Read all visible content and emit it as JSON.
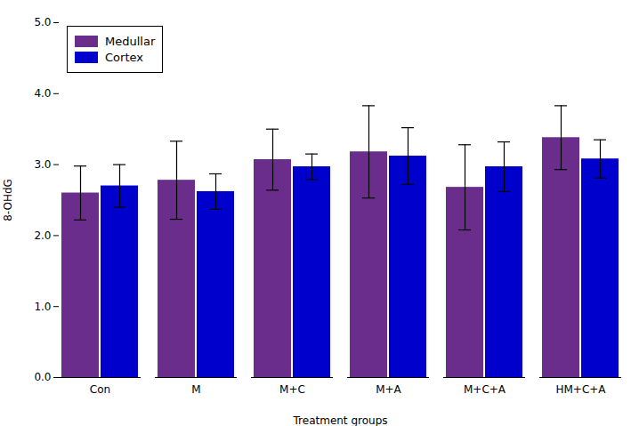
{
  "chart_data": {
    "type": "bar",
    "xlabel": "Treatment groups",
    "ylabel": "8-OHdG",
    "categories": [
      "Con",
      "M",
      "M+C",
      "M+A",
      "M+C+A",
      "HM+C+A"
    ],
    "series": [
      {
        "name": "Medullar",
        "color": "#6B2D8B",
        "values": [
          2.6,
          2.78,
          3.07,
          3.18,
          2.68,
          3.38
        ],
        "errors": [
          0.38,
          0.55,
          0.43,
          0.65,
          0.6,
          0.45
        ]
      },
      {
        "name": "Cortex",
        "color": "#0000CD",
        "values": [
          2.7,
          2.62,
          2.97,
          3.12,
          2.97,
          3.08
        ],
        "errors": [
          0.3,
          0.25,
          0.18,
          0.4,
          0.35,
          0.27
        ]
      }
    ],
    "ylim": [
      0,
      5
    ],
    "yticks": [
      0,
      1,
      2,
      3,
      4,
      5
    ],
    "legend": "upper left",
    "grid": false
  }
}
